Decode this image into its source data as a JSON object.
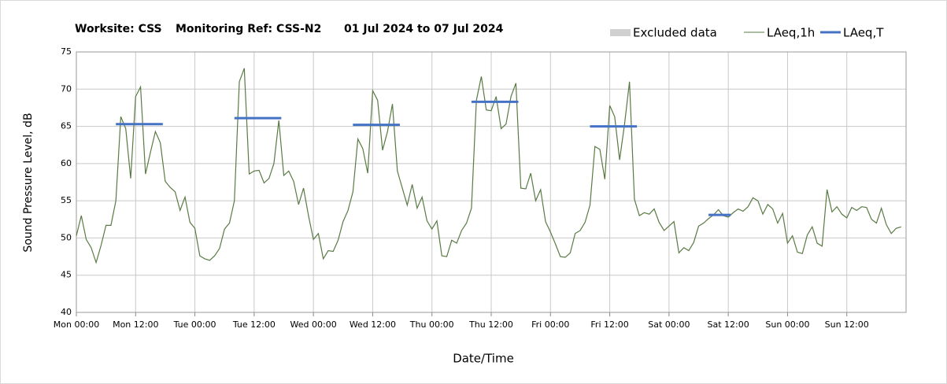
{
  "chart_data": {
    "type": "line",
    "title_parts": [
      "Worksite: CSS",
      "Monitoring Ref: CSS-N2",
      "01 Jul 2024 to 07 Jul 2024"
    ],
    "y_label": "Sound Pressure Level, dB",
    "x_label": "Date/Time",
    "xlim": [
      0,
      168
    ],
    "ylim": [
      40,
      75
    ],
    "yticks": [
      40,
      45,
      50,
      55,
      60,
      65,
      70,
      75
    ],
    "xticks": [
      {
        "value": 0,
        "label": "Mon 00:00"
      },
      {
        "value": 12,
        "label": "Mon 12:00"
      },
      {
        "value": 24,
        "label": "Tue 00:00"
      },
      {
        "value": 36,
        "label": "Tue 12:00"
      },
      {
        "value": 48,
        "label": "Wed 00:00"
      },
      {
        "value": 60,
        "label": "Wed 12:00"
      },
      {
        "value": 72,
        "label": "Thu 00:00"
      },
      {
        "value": 84,
        "label": "Thu 12:00"
      },
      {
        "value": 96,
        "label": "Fri 00:00"
      },
      {
        "value": 108,
        "label": "Fri 12:00"
      },
      {
        "value": 120,
        "label": "Sat 00:00"
      },
      {
        "value": 132,
        "label": "Sat 12:00"
      },
      {
        "value": 144,
        "label": "Sun 00:00"
      },
      {
        "value": 156,
        "label": "Sun 12:00"
      }
    ],
    "grid": true,
    "series": [
      {
        "name": "Excluded data",
        "color": "#d0d0d0",
        "kind": "area",
        "values": []
      },
      {
        "name": "LAeq,1h",
        "color": "#5a7a44",
        "kind": "line",
        "x": [
          0,
          1,
          2,
          3,
          4,
          5,
          6,
          7,
          8,
          9,
          10,
          11,
          12,
          13,
          14,
          15,
          16,
          17,
          18,
          19,
          20,
          21,
          22,
          23,
          24,
          25,
          26,
          27,
          28,
          29,
          30,
          31,
          32,
          33,
          34,
          35,
          36,
          37,
          38,
          39,
          40,
          41,
          42,
          43,
          44,
          45,
          46,
          47,
          48,
          49,
          50,
          51,
          52,
          53,
          54,
          55,
          56,
          57,
          58,
          59,
          60,
          61,
          62,
          63,
          64,
          65,
          66,
          67,
          68,
          69,
          70,
          71,
          72,
          73,
          74,
          75,
          76,
          77,
          78,
          79,
          80,
          81,
          82,
          83,
          84,
          85,
          86,
          87,
          88,
          89,
          90,
          91,
          92,
          93,
          94,
          95,
          96,
          97,
          98,
          99,
          100,
          101,
          102,
          103,
          104,
          105,
          106,
          107,
          108,
          109,
          110,
          111,
          112,
          113,
          114,
          115,
          116,
          117,
          118,
          119,
          120,
          121,
          122,
          123,
          124,
          125,
          126,
          127,
          128,
          129,
          130,
          131,
          132,
          133,
          134,
          135,
          136,
          137,
          138,
          139,
          140,
          141,
          142,
          143,
          144,
          145,
          146,
          147,
          148,
          149,
          150,
          151,
          152,
          153,
          154,
          155,
          156,
          157,
          158,
          159,
          160,
          161,
          162,
          163,
          164,
          165,
          166,
          167
        ],
        "values": [
          50.3,
          53,
          49.8,
          48.7,
          46.7,
          49,
          51.7,
          51.7,
          55,
          66.3,
          64.7,
          58,
          69,
          70.3,
          58.6,
          61.5,
          64.3,
          62.8,
          57.6,
          56.8,
          56.2,
          53.7,
          55.5,
          52.1,
          51.3,
          47.6,
          47.2,
          47,
          47.6,
          48.6,
          51.2,
          52,
          55,
          71,
          72.8,
          58.6,
          59,
          59.1,
          57.4,
          58,
          60,
          65.8,
          58.4,
          59,
          57.6,
          54.5,
          56.7,
          53,
          49.8,
          50.6,
          47.2,
          48.3,
          48.2,
          49.7,
          52.2,
          53.7,
          56.2,
          63.3,
          62,
          58.7,
          69.8,
          68.5,
          61.8,
          64.3,
          68,
          59,
          56.7,
          54.4,
          57.2,
          54,
          55.5,
          52.3,
          51.2,
          52.3,
          47.6,
          47.5,
          49.7,
          49.3,
          51,
          52,
          54,
          68.5,
          71.7,
          67.2,
          67.1,
          69,
          64.7,
          65.3,
          69,
          70.8,
          56.7,
          56.6,
          58.7,
          55,
          56.5,
          52.2,
          50.8,
          49.2,
          47.5,
          47.4,
          48,
          50.6,
          51,
          52.1,
          54.4,
          62.3,
          61.9,
          57.9,
          67.8,
          66.3,
          60.5,
          65.3,
          71,
          55.2,
          53,
          53.4,
          53.2,
          53.9,
          52.1,
          51,
          51.6,
          52.2,
          48,
          48.7,
          48.3,
          49.4,
          51.6,
          52,
          52.6,
          53.1,
          53.8,
          53,
          52.8,
          53.4,
          53.9,
          53.6,
          54.2,
          55.4,
          55,
          53.2,
          54.5,
          53.9,
          52,
          53.3,
          49.3,
          50.3,
          48.1,
          47.9,
          50.4,
          51.5,
          49.3,
          48.9,
          56.5,
          53.5,
          54.2,
          53.2,
          52.7,
          54.1,
          53.7,
          54.2,
          54.1,
          52.5,
          52,
          54,
          51.8,
          50.6,
          51.3,
          51.5
        ]
      },
      {
        "name": "LAeq,T",
        "color": "#4472c4",
        "kind": "segment",
        "x_start": [
          8,
          32,
          56,
          80,
          104,
          128
        ],
        "x_end": [
          17.5,
          41.5,
          65.5,
          89.5,
          113.5,
          132.5
        ],
        "values": [
          65.3,
          66.1,
          65.2,
          68.3,
          65,
          53.1
        ]
      }
    ]
  }
}
